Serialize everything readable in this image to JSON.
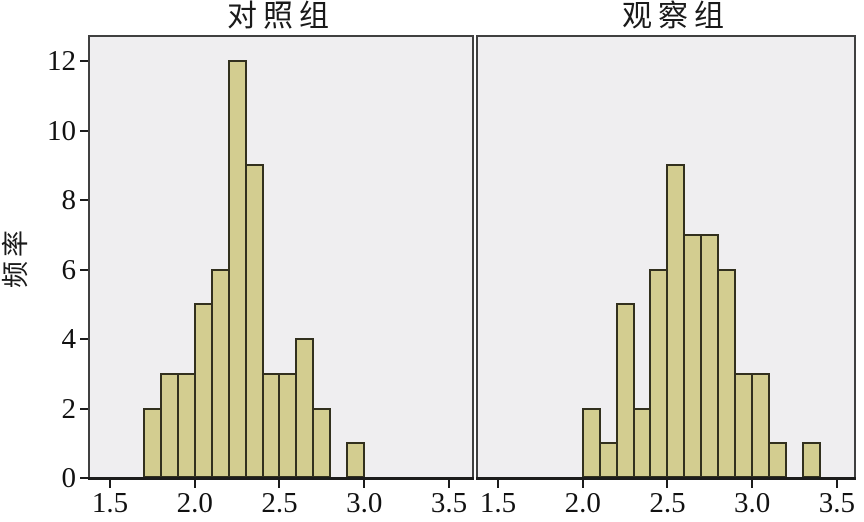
{
  "figure_title": "",
  "colors": {
    "bar_fill": "#d3cd90",
    "bar_border": "#32301e",
    "plot_background": "#efeef0",
    "frame": "#404040",
    "axis": "#1c1c1c",
    "text": "#111111",
    "page_background": "#ffffff"
  },
  "chart_data": {
    "type": "bar",
    "subtype": "histogram-pair",
    "ylabel": "频率",
    "ylim": [
      0,
      12.7
    ],
    "yticks": {
      "values": [
        0,
        2,
        4,
        6,
        8,
        10,
        12
      ],
      "labels": [
        "0",
        "2",
        "4",
        "6",
        "8",
        "10",
        "12"
      ]
    },
    "bin_width": 0.1,
    "grid": false,
    "legend": "none",
    "panels": [
      {
        "title": "对照组",
        "xlim": [
          1.382,
          3.636
        ],
        "xticks": {
          "values": [
            1.5,
            2.0,
            2.5,
            3.0,
            3.5
          ],
          "labels": [
            "1.5",
            "2.0",
            "2.5",
            "3.0",
            "3.5"
          ]
        },
        "bin_starts": [
          1.7,
          1.8,
          1.9,
          2.0,
          2.1,
          2.2,
          2.3,
          2.4,
          2.5,
          2.6,
          2.7,
          2.9
        ],
        "counts": [
          2,
          3,
          3,
          5,
          6,
          12,
          9,
          3,
          3,
          4,
          2,
          1
        ]
      },
      {
        "title": "观察组",
        "xlim": [
          1.382,
          3.601
        ],
        "xticks": {
          "values": [
            1.5,
            2.0,
            2.5,
            3.0,
            3.5
          ],
          "labels": [
            "1.5",
            "2.0",
            "2.5",
            "3.0",
            "3.5"
          ]
        },
        "bin_starts": [
          2.0,
          2.1,
          2.2,
          2.3,
          2.4,
          2.5,
          2.6,
          2.7,
          2.8,
          2.9,
          3.0,
          3.1,
          3.3
        ],
        "counts": [
          2,
          1,
          5,
          2,
          6,
          9,
          7,
          7,
          6,
          3,
          3,
          1,
          1
        ]
      }
    ]
  }
}
